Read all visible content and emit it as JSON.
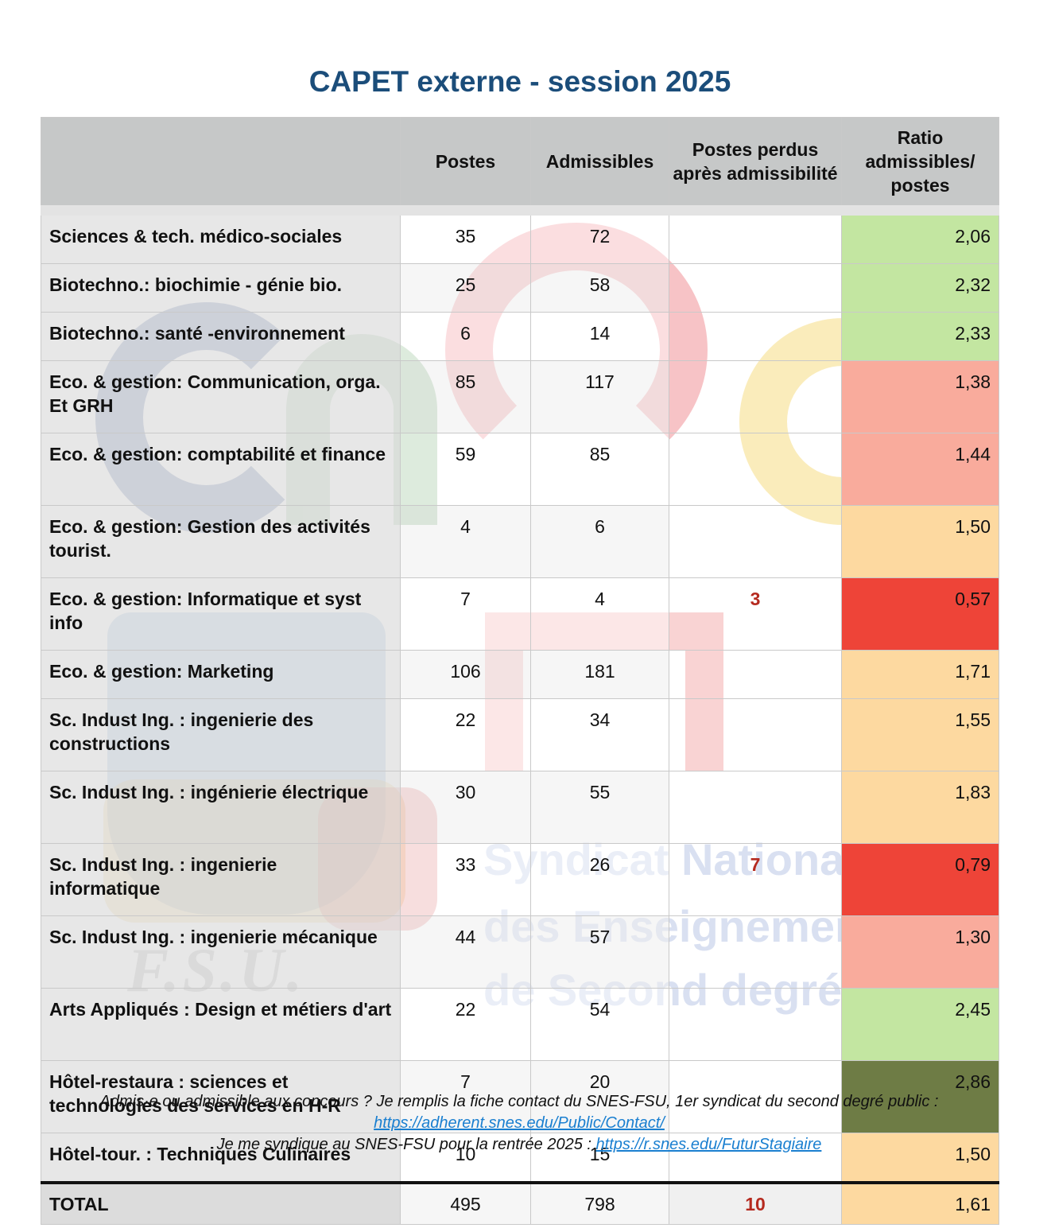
{
  "title": "CAPET externe - session 2025",
  "table": {
    "headers": [
      "",
      "Postes",
      "Admissibles",
      "Postes perdus après admissibilité",
      "Ratio admissibles/ postes"
    ],
    "rows": [
      {
        "label": "Sciences & tech. médico-sociales",
        "postes": "35",
        "admissibles": "72",
        "perdus": "",
        "ratio": "2,06",
        "color": "#c3e6a1"
      },
      {
        "label": "Biotechno.: biochimie - génie bio.",
        "postes": "25",
        "admissibles": "58",
        "perdus": "",
        "ratio": "2,32",
        "color": "#c3e6a1"
      },
      {
        "label": "Biotechno.: santé -environnement",
        "postes": "6",
        "admissibles": "14",
        "perdus": "",
        "ratio": "2,33",
        "color": "#c3e6a1"
      },
      {
        "label": "Eco. & gestion: Communication, orga. Et GRH",
        "postes": "85",
        "admissibles": "117",
        "perdus": "",
        "ratio": "1,38",
        "color": "#f9ab9c"
      },
      {
        "label": "Eco. & gestion: comptabilité et finance",
        "postes": "59",
        "admissibles": "85",
        "perdus": "",
        "ratio": "1,44",
        "color": "#f9ab9c"
      },
      {
        "label": "Eco. & gestion: Gestion des activités tourist.",
        "postes": "4",
        "admissibles": "6",
        "perdus": "",
        "ratio": "1,50",
        "color": "#fdd9a0"
      },
      {
        "label": "Eco. & gestion: Informatique et syst info",
        "postes": "7",
        "admissibles": "4",
        "perdus": "3",
        "ratio": "0,57",
        "color": "#ee4438"
      },
      {
        "label": "Eco. & gestion: Marketing",
        "postes": "106",
        "admissibles": "181",
        "perdus": "",
        "ratio": "1,71",
        "color": "#fdd9a0"
      },
      {
        "label": "Sc. Indust Ing. : ingenierie des constructions",
        "postes": "22",
        "admissibles": "34",
        "perdus": "",
        "ratio": "1,55",
        "color": "#fdd9a0"
      },
      {
        "label": "Sc. Indust Ing. : ingénierie électrique",
        "postes": "30",
        "admissibles": "55",
        "perdus": "",
        "ratio": "1,83",
        "color": "#fdd9a0"
      },
      {
        "label": "Sc. Indust Ing. : ingenierie informatique",
        "postes": "33",
        "admissibles": "26",
        "perdus": "7",
        "ratio": "0,79",
        "color": "#ee4438"
      },
      {
        "label": "Sc. Indust Ing. : ingenierie mécanique",
        "postes": "44",
        "admissibles": "57",
        "perdus": "",
        "ratio": "1,30",
        "color": "#f9ab9c"
      },
      {
        "label": "Arts Appliqués : Design et métiers d'art",
        "postes": "22",
        "admissibles": "54",
        "perdus": "",
        "ratio": "2,45",
        "color": "#c3e6a1"
      },
      {
        "label": "Hôtel-restaura : sciences et technologies des services en H-R",
        "postes": "7",
        "admissibles": "20",
        "perdus": "",
        "ratio": "2,86",
        "color": "#6e7c45"
      },
      {
        "label": "Hôtel-tour. : Techniques Culinaires",
        "postes": "10",
        "admissibles": "15",
        "perdus": "",
        "ratio": "1,50",
        "color": "#fdd9a0"
      }
    ],
    "total": {
      "label": "TOTAL",
      "postes": "495",
      "admissibles": "798",
      "perdus": "10",
      "ratio": "1,61",
      "color": "#fdd9a0"
    }
  },
  "watermark": {
    "logo": "snes FSU",
    "logo_fsu": "F.S.U.",
    "line1": "Syndicat National",
    "line2": "des Enseignements",
    "line3": "de Second degré"
  },
  "footer": {
    "line1": "Admis·e ou admissible aux concours ? Je remplis la fiche contact du SNES-FSU, 1er syndicat du second degré public :",
    "link1": "https://adherent.snes.edu/Public/Contact/",
    "line2": "Je me syndique au SNES-FSU pour la rentrée 2025 : ",
    "link2": "https://r.snes.edu/FuturStagiaire"
  }
}
